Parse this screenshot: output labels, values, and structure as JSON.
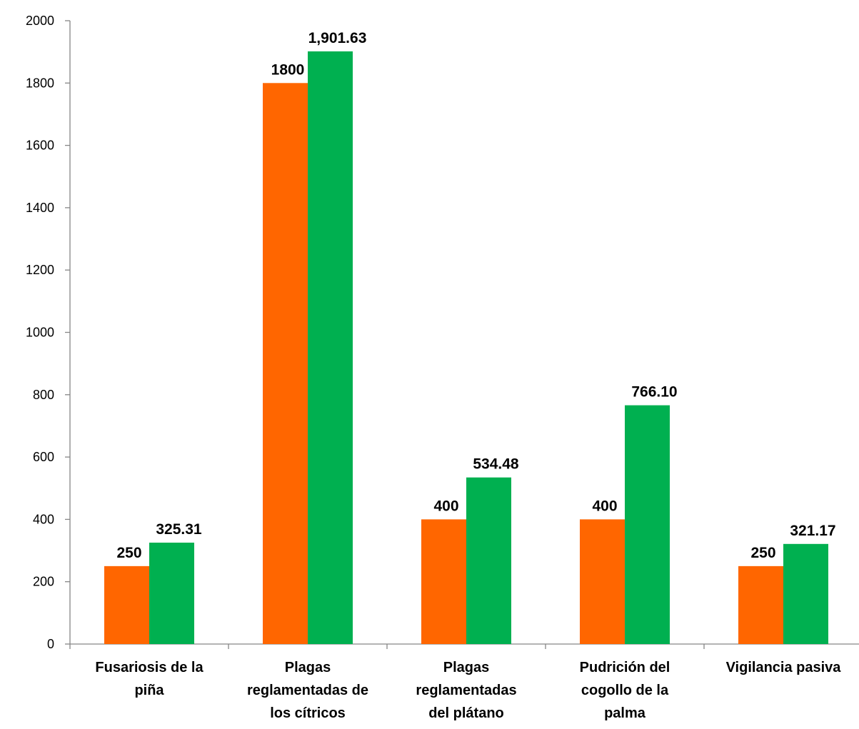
{
  "chart_data": {
    "type": "bar",
    "categories": [
      [
        "Fusariosis de la",
        "piña"
      ],
      [
        "Plagas",
        "reglamentadas de",
        "los cítricos"
      ],
      [
        "Plagas",
        "reglamentadas",
        "del plátano"
      ],
      [
        "Pudrición del",
        "cogollo de la",
        "palma"
      ],
      [
        "Vigilancia pasiva"
      ]
    ],
    "series": [
      {
        "color": "#FF6600",
        "values": [
          250,
          1800,
          400,
          400,
          250
        ],
        "labels": [
          "250",
          "1800",
          "400",
          "400",
          "250"
        ]
      },
      {
        "color": "#00B050",
        "values": [
          325.31,
          1901.63,
          534.48,
          766.1,
          321.17
        ],
        "labels": [
          "325.31",
          "1,901.63",
          "534.48",
          "766.10",
          "321.17"
        ]
      }
    ],
    "ylim": [
      0,
      2000
    ],
    "yticks": [
      "0",
      "200",
      "400",
      "600",
      "800",
      "1000",
      "1200",
      "1400",
      "1600",
      "1800",
      "2000"
    ],
    "grid": false,
    "legend": "none"
  }
}
